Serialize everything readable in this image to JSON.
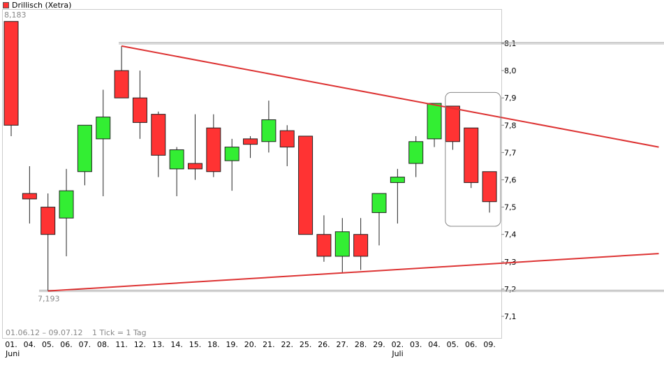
{
  "title": "Drillisch (Xetra)",
  "colors": {
    "up": "#33ee33",
    "down": "#ff3333",
    "trend": "#dd3333",
    "grid": "#d8d8d8",
    "frame": "#888888",
    "legend": "#ff3333"
  },
  "footer": {
    "range": "01.06.12 – 09.07.12",
    "tick": "1 Tick = 1 Tag"
  },
  "chart_data": {
    "type": "candlestick",
    "y_ticks": [
      "8,1",
      "8,0",
      "7,9",
      "7,8",
      "7,7",
      "7,6",
      "7,5",
      "7,4",
      "7,3",
      "7,2",
      "7,1"
    ],
    "ylim": [
      7.03,
      8.19
    ],
    "month_labels": [
      {
        "at": 0,
        "text": "Juni"
      },
      {
        "at": 21,
        "text": "Juli"
      }
    ],
    "candles": [
      {
        "date": "01.",
        "open": 8.18,
        "high": 8.18,
        "low": 7.76,
        "close": 7.8
      },
      {
        "date": "04.",
        "open": 7.55,
        "high": 7.65,
        "low": 7.44,
        "close": 7.53
      },
      {
        "date": "05.",
        "open": 7.5,
        "high": 7.55,
        "low": 7.193,
        "close": 7.4
      },
      {
        "date": "06.",
        "open": 7.46,
        "high": 7.64,
        "low": 7.32,
        "close": 7.56
      },
      {
        "date": "07.",
        "open": 7.63,
        "high": 7.8,
        "low": 7.58,
        "close": 7.8
      },
      {
        "date": "08.",
        "open": 7.75,
        "high": 7.93,
        "low": 7.54,
        "close": 7.83
      },
      {
        "date": "11.",
        "open": 8.0,
        "high": 8.09,
        "low": 7.9,
        "close": 7.9
      },
      {
        "date": "12.",
        "open": 7.9,
        "high": 8.0,
        "low": 7.75,
        "close": 7.81
      },
      {
        "date": "13.",
        "open": 7.84,
        "high": 7.85,
        "low": 7.61,
        "close": 7.69
      },
      {
        "date": "14.",
        "open": 7.64,
        "high": 7.72,
        "low": 7.54,
        "close": 7.71
      },
      {
        "date": "15.",
        "open": 7.66,
        "high": 7.84,
        "low": 7.6,
        "close": 7.64
      },
      {
        "date": "18.",
        "open": 7.79,
        "high": 7.84,
        "low": 7.61,
        "close": 7.63
      },
      {
        "date": "19.",
        "open": 7.67,
        "high": 7.75,
        "low": 7.56,
        "close": 7.72
      },
      {
        "date": "20.",
        "open": 7.75,
        "high": 7.76,
        "low": 7.68,
        "close": 7.73
      },
      {
        "date": "21.",
        "open": 7.74,
        "high": 7.89,
        "low": 7.7,
        "close": 7.82
      },
      {
        "date": "22.",
        "open": 7.78,
        "high": 7.8,
        "low": 7.65,
        "close": 7.72
      },
      {
        "date": "25.",
        "open": 7.76,
        "high": 7.76,
        "low": 7.4,
        "close": 7.4
      },
      {
        "date": "26.",
        "open": 7.4,
        "high": 7.47,
        "low": 7.3,
        "close": 7.32
      },
      {
        "date": "27.",
        "open": 7.32,
        "high": 7.46,
        "low": 7.26,
        "close": 7.41
      },
      {
        "date": "28.",
        "open": 7.4,
        "high": 7.46,
        "low": 7.27,
        "close": 7.32
      },
      {
        "date": "29.",
        "open": 7.48,
        "high": 7.55,
        "low": 7.36,
        "close": 7.55
      },
      {
        "date": "02.",
        "open": 7.59,
        "high": 7.64,
        "low": 7.44,
        "close": 7.61
      },
      {
        "date": "03.",
        "open": 7.66,
        "high": 7.76,
        "low": 7.61,
        "close": 7.74
      },
      {
        "date": "04.",
        "open": 7.75,
        "high": 7.88,
        "low": 7.72,
        "close": 7.88
      },
      {
        "date": "05.",
        "open": 7.87,
        "high": 7.87,
        "low": 7.71,
        "close": 7.74
      },
      {
        "date": "06.",
        "open": 7.79,
        "high": 7.79,
        "low": 7.57,
        "close": 7.59
      },
      {
        "date": "09.",
        "open": 7.63,
        "high": 7.63,
        "low": 7.48,
        "close": 7.52
      }
    ],
    "max_label": "8,183",
    "min_label": "7,193",
    "hlines": [
      8.1,
      7.193
    ],
    "trendlines": [
      {
        "from": {
          "i": 6,
          "y": 8.09
        },
        "to": {
          "i": 35.2,
          "y": 7.72
        }
      },
      {
        "from": {
          "i": 2,
          "y": 7.193
        },
        "to": {
          "i": 35.2,
          "y": 7.33
        }
      }
    ],
    "highlight": {
      "i_from": 23.6,
      "i_to": 26.6,
      "y_top": 7.92,
      "y_bottom": 7.43
    }
  }
}
